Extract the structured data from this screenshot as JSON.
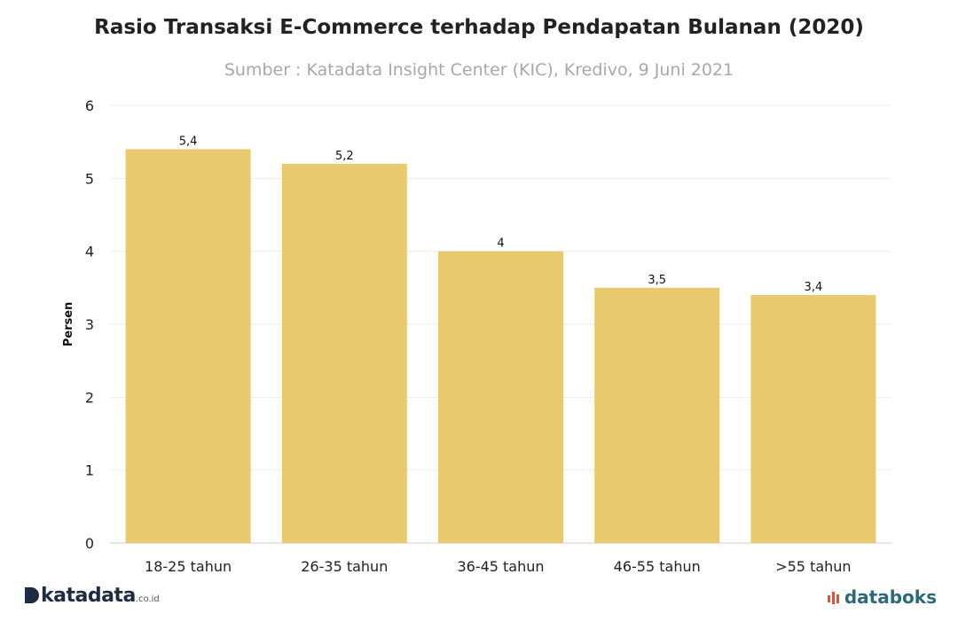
{
  "title": "Rasio Transaksi E-Commerce terhadap Pendapatan Bulanan (2020)",
  "subtitle": "Sumber : Katadata Insight Center (KIC), Kredivo, 9 Juni 2021",
  "chart_data": {
    "type": "bar",
    "categories": [
      "18-25 tahun",
      "26-35 tahun",
      "36-45 tahun",
      "46-55 tahun",
      ">55 tahun"
    ],
    "values": [
      5.4,
      5.2,
      4,
      3.5,
      3.4
    ],
    "data_labels": [
      "5,4",
      "5,2",
      "4",
      "3,5",
      "3,4"
    ],
    "ylabel": "Persen",
    "ylim": [
      0,
      6
    ],
    "yticks": [
      0,
      1,
      2,
      3,
      4,
      5,
      6
    ],
    "grid": true,
    "bar_color": "#e8c96d"
  },
  "brand_left": {
    "name": "katadata",
    "tld": ".co.id"
  },
  "brand_right": {
    "name": "databoks"
  },
  "colors": {
    "brand_left": "#1f2a44",
    "brand_right": "#2a6a7c",
    "accent_right": "#e0533a"
  }
}
